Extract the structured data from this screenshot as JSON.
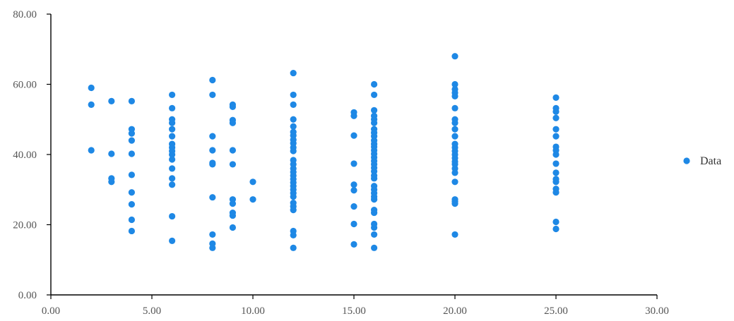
{
  "chart_data": {
    "type": "scatter",
    "title": "",
    "xlabel": "",
    "ylabel": "",
    "xlim": [
      0,
      30
    ],
    "ylim": [
      0,
      80
    ],
    "x_ticks": [
      0,
      5,
      10,
      15,
      20,
      25,
      30
    ],
    "y_ticks": [
      0,
      20,
      40,
      60,
      80
    ],
    "tick_format": "2-decimal",
    "grid": false,
    "legend": {
      "position": "right"
    },
    "series": [
      {
        "name": "Data",
        "color": "#1e88e5",
        "points": [
          [
            2,
            59.0
          ],
          [
            2,
            54.2
          ],
          [
            2,
            41.2
          ],
          [
            3,
            55.2
          ],
          [
            3,
            40.2
          ],
          [
            3,
            33.2
          ],
          [
            3,
            32.2
          ],
          [
            4,
            55.2
          ],
          [
            4,
            47.2
          ],
          [
            4,
            46.0
          ],
          [
            4,
            44.0
          ],
          [
            4,
            40.2
          ],
          [
            4,
            34.2
          ],
          [
            4,
            29.2
          ],
          [
            4,
            25.8
          ],
          [
            4,
            21.4
          ],
          [
            4,
            18.2
          ],
          [
            6,
            57.0
          ],
          [
            6,
            53.2
          ],
          [
            6,
            50.0
          ],
          [
            6,
            49.0
          ],
          [
            6,
            47.2
          ],
          [
            6,
            45.2
          ],
          [
            6,
            43.0
          ],
          [
            6,
            42.0
          ],
          [
            6,
            41.0
          ],
          [
            6,
            40.0
          ],
          [
            6,
            38.6
          ],
          [
            6,
            36.0
          ],
          [
            6,
            33.2
          ],
          [
            6,
            31.4
          ],
          [
            6,
            22.4
          ],
          [
            6,
            15.4
          ],
          [
            8,
            61.2
          ],
          [
            8,
            57.0
          ],
          [
            8,
            45.2
          ],
          [
            8,
            41.2
          ],
          [
            8,
            37.6
          ],
          [
            8,
            37.2
          ],
          [
            8,
            27.8
          ],
          [
            8,
            17.2
          ],
          [
            8,
            14.6
          ],
          [
            8,
            13.4
          ],
          [
            9,
            54.2
          ],
          [
            9,
            53.6
          ],
          [
            9,
            49.8
          ],
          [
            9,
            49.0
          ],
          [
            9,
            41.2
          ],
          [
            9,
            37.2
          ],
          [
            9,
            27.2
          ],
          [
            9,
            26.0
          ],
          [
            9,
            23.4
          ],
          [
            9,
            22.6
          ],
          [
            9,
            19.2
          ],
          [
            10,
            32.2
          ],
          [
            10,
            27.2
          ],
          [
            12,
            63.2
          ],
          [
            12,
            57.0
          ],
          [
            12,
            54.2
          ],
          [
            12,
            50.0
          ],
          [
            12,
            48.0
          ],
          [
            12,
            46.4
          ],
          [
            12,
            45.4
          ],
          [
            12,
            44.2
          ],
          [
            12,
            43.2
          ],
          [
            12,
            42.0
          ],
          [
            12,
            41.0
          ],
          [
            12,
            38.4
          ],
          [
            12,
            37.2
          ],
          [
            12,
            36.0
          ],
          [
            12,
            35.0
          ],
          [
            12,
            34.0
          ],
          [
            12,
            33.0
          ],
          [
            12,
            32.0
          ],
          [
            12,
            31.0
          ],
          [
            12,
            30.0
          ],
          [
            12,
            29.0
          ],
          [
            12,
            28.0
          ],
          [
            12,
            26.2
          ],
          [
            12,
            25.2
          ],
          [
            12,
            24.2
          ],
          [
            12,
            18.2
          ],
          [
            12,
            17.0
          ],
          [
            12,
            13.4
          ],
          [
            15,
            52.0
          ],
          [
            15,
            51.0
          ],
          [
            15,
            45.4
          ],
          [
            15,
            37.4
          ],
          [
            15,
            31.4
          ],
          [
            15,
            29.8
          ],
          [
            15,
            25.2
          ],
          [
            15,
            20.2
          ],
          [
            15,
            14.4
          ],
          [
            16,
            60.0
          ],
          [
            16,
            57.0
          ],
          [
            16,
            52.6
          ],
          [
            16,
            51.0
          ],
          [
            16,
            50.0
          ],
          [
            16,
            49.0
          ],
          [
            16,
            47.2
          ],
          [
            16,
            46.2
          ],
          [
            16,
            45.2
          ],
          [
            16,
            44.0
          ],
          [
            16,
            43.0
          ],
          [
            16,
            42.2
          ],
          [
            16,
            41.2
          ],
          [
            16,
            40.2
          ],
          [
            16,
            39.2
          ],
          [
            16,
            38.2
          ],
          [
            16,
            37.2
          ],
          [
            16,
            36.2
          ],
          [
            16,
            35.2
          ],
          [
            16,
            34.0
          ],
          [
            16,
            33.2
          ],
          [
            16,
            31.0
          ],
          [
            16,
            30.0
          ],
          [
            16,
            29.0
          ],
          [
            16,
            28.0
          ],
          [
            16,
            27.2
          ],
          [
            16,
            24.2
          ],
          [
            16,
            23.4
          ],
          [
            16,
            20.2
          ],
          [
            16,
            19.2
          ],
          [
            16,
            17.2
          ],
          [
            16,
            13.4
          ],
          [
            20,
            68.0
          ],
          [
            20,
            60.0
          ],
          [
            20,
            58.6
          ],
          [
            20,
            57.6
          ],
          [
            20,
            56.6
          ],
          [
            20,
            53.2
          ],
          [
            20,
            50.0
          ],
          [
            20,
            49.0
          ],
          [
            20,
            47.2
          ],
          [
            20,
            45.2
          ],
          [
            20,
            43.0
          ],
          [
            20,
            42.0
          ],
          [
            20,
            41.0
          ],
          [
            20,
            40.0
          ],
          [
            20,
            39.0
          ],
          [
            20,
            38.0
          ],
          [
            20,
            37.2
          ],
          [
            20,
            36.0
          ],
          [
            20,
            34.8
          ],
          [
            20,
            32.2
          ],
          [
            20,
            27.2
          ],
          [
            20,
            26.6
          ],
          [
            20,
            26.0
          ],
          [
            20,
            17.2
          ],
          [
            25,
            56.2
          ],
          [
            25,
            53.2
          ],
          [
            25,
            52.2
          ],
          [
            25,
            50.4
          ],
          [
            25,
            47.2
          ],
          [
            25,
            45.2
          ],
          [
            25,
            42.2
          ],
          [
            25,
            41.2
          ],
          [
            25,
            40.0
          ],
          [
            25,
            37.4
          ],
          [
            25,
            34.8
          ],
          [
            25,
            33.0
          ],
          [
            25,
            32.2
          ],
          [
            25,
            30.2
          ],
          [
            25,
            29.2
          ],
          [
            25,
            20.8
          ],
          [
            25,
            18.8
          ]
        ]
      }
    ]
  }
}
